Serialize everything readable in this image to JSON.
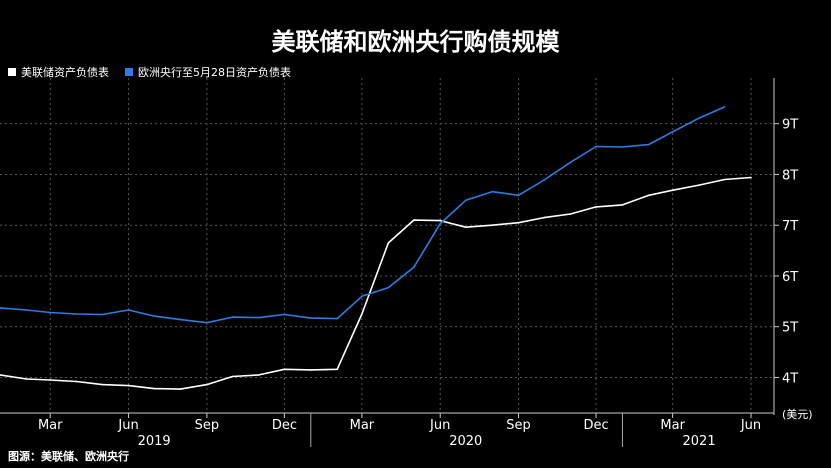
{
  "chart_data": {
    "type": "line",
    "title": "美联储和欧洲央行购债规模",
    "unit_label": "(美元)",
    "source": "图源：美联储、欧洲央行",
    "ylim": [
      3.3,
      9.9
    ],
    "yticks": [
      {
        "value": 4,
        "label": "4T"
      },
      {
        "value": 5,
        "label": "5T"
      },
      {
        "value": 6,
        "label": "6T"
      },
      {
        "value": 7,
        "label": "7T"
      },
      {
        "value": 8,
        "label": "8T"
      },
      {
        "value": 9,
        "label": "9T"
      }
    ],
    "xlim": [
      "2019-01-01",
      "2021-06-28"
    ],
    "xticks": [
      {
        "date": "2019-03-01",
        "label": "Mar"
      },
      {
        "date": "2019-06-01",
        "label": "Jun"
      },
      {
        "date": "2019-09-01",
        "label": "Sep"
      },
      {
        "date": "2019-12-01",
        "label": "Dec"
      },
      {
        "date": "2020-03-01",
        "label": "Mar"
      },
      {
        "date": "2020-06-01",
        "label": "Jun"
      },
      {
        "date": "2020-09-01",
        "label": "Sep"
      },
      {
        "date": "2020-12-01",
        "label": "Dec"
      },
      {
        "date": "2021-03-01",
        "label": "Mar"
      },
      {
        "date": "2021-06-01",
        "label": "Jun"
      }
    ],
    "year_labels": [
      {
        "label": "2019",
        "date": "2019-07-01"
      },
      {
        "label": "2020",
        "date": "2020-07-01"
      },
      {
        "label": "2021",
        "date": "2021-04-01"
      }
    ],
    "series": [
      {
        "name": "美联储资产负债表",
        "color": "#ffffff",
        "points": [
          [
            "2019-01-01",
            4.05
          ],
          [
            "2019-02-01",
            3.97
          ],
          [
            "2019-03-01",
            3.95
          ],
          [
            "2019-04-01",
            3.92
          ],
          [
            "2019-05-01",
            3.86
          ],
          [
            "2019-06-01",
            3.84
          ],
          [
            "2019-07-01",
            3.78
          ],
          [
            "2019-08-01",
            3.77
          ],
          [
            "2019-09-01",
            3.86
          ],
          [
            "2019-10-01",
            4.02
          ],
          [
            "2019-11-01",
            4.05
          ],
          [
            "2019-12-01",
            4.16
          ],
          [
            "2020-01-01",
            4.15
          ],
          [
            "2020-02-01",
            4.16
          ],
          [
            "2020-03-01",
            5.25
          ],
          [
            "2020-04-01",
            6.65
          ],
          [
            "2020-05-01",
            7.1
          ],
          [
            "2020-06-01",
            7.09
          ],
          [
            "2020-07-01",
            6.96
          ],
          [
            "2020-08-01",
            7.0
          ],
          [
            "2020-09-01",
            7.05
          ],
          [
            "2020-10-01",
            7.15
          ],
          [
            "2020-11-01",
            7.22
          ],
          [
            "2020-12-01",
            7.36
          ],
          [
            "2021-01-01",
            7.4
          ],
          [
            "2021-02-01",
            7.59
          ],
          [
            "2021-03-01",
            7.69
          ],
          [
            "2021-04-01",
            7.79
          ],
          [
            "2021-05-01",
            7.9
          ],
          [
            "2021-06-01",
            7.94
          ]
        ]
      },
      {
        "name": "欧洲央行至5月28日资产负债表",
        "color": "#2f7de1",
        "points": [
          [
            "2019-01-01",
            5.37
          ],
          [
            "2019-02-01",
            5.33
          ],
          [
            "2019-03-01",
            5.28
          ],
          [
            "2019-04-01",
            5.25
          ],
          [
            "2019-05-01",
            5.24
          ],
          [
            "2019-06-01",
            5.33
          ],
          [
            "2019-07-01",
            5.21
          ],
          [
            "2019-08-01",
            5.14
          ],
          [
            "2019-09-01",
            5.08
          ],
          [
            "2019-10-01",
            5.19
          ],
          [
            "2019-11-01",
            5.18
          ],
          [
            "2019-12-01",
            5.24
          ],
          [
            "2020-01-01",
            5.17
          ],
          [
            "2020-02-01",
            5.16
          ],
          [
            "2020-03-01",
            5.6
          ],
          [
            "2020-04-01",
            5.77
          ],
          [
            "2020-05-01",
            6.17
          ],
          [
            "2020-06-01",
            7.03
          ],
          [
            "2020-07-01",
            7.49
          ],
          [
            "2020-08-01",
            7.66
          ],
          [
            "2020-09-01",
            7.59
          ],
          [
            "2020-10-01",
            7.89
          ],
          [
            "2020-11-01",
            8.24
          ],
          [
            "2020-12-01",
            8.55
          ],
          [
            "2021-01-01",
            8.54
          ],
          [
            "2021-02-01",
            8.59
          ],
          [
            "2021-03-01",
            8.84
          ],
          [
            "2021-04-01",
            9.11
          ],
          [
            "2021-05-01",
            9.33
          ]
        ]
      }
    ]
  }
}
